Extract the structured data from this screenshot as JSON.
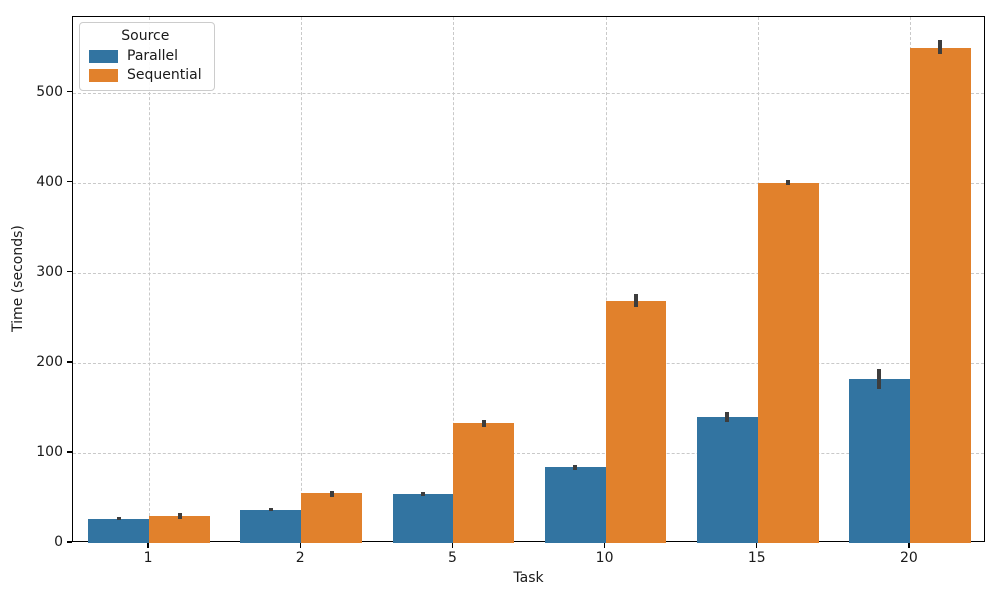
{
  "chart_data": {
    "type": "bar",
    "title": "",
    "xlabel": "Task",
    "ylabel": "Time (seconds)",
    "categories": [
      "1",
      "2",
      "5",
      "10",
      "15",
      "20"
    ],
    "series": [
      {
        "name": "Parallel",
        "color": "#3274a1",
        "values": [
          27,
          37,
          54,
          84,
          140,
          182
        ],
        "ci": [
          [
            25,
            29
          ],
          [
            35,
            39
          ],
          [
            52,
            57
          ],
          [
            81,
            87
          ],
          [
            134,
            146
          ],
          [
            171,
            193
          ]
        ]
      },
      {
        "name": "Sequential",
        "color": "#e1812c",
        "values": [
          30,
          55,
          133,
          269,
          400,
          550
        ],
        "ci": [
          [
            27,
            33
          ],
          [
            51,
            58
          ],
          [
            129,
            137
          ],
          [
            262,
            277
          ],
          [
            397,
            403
          ],
          [
            543,
            559
          ]
        ]
      }
    ],
    "ylim": [
      0,
      584
    ],
    "yticks": [
      0,
      100,
      200,
      300,
      400,
      500
    ],
    "grid": {
      "style": "dashed",
      "color": "#c9c9c9",
      "on": true
    },
    "legend": {
      "title": "Source",
      "position": "upper-left"
    },
    "error_bar_color": "#3d3d3d",
    "bar_group_width_fraction": 0.8
  }
}
